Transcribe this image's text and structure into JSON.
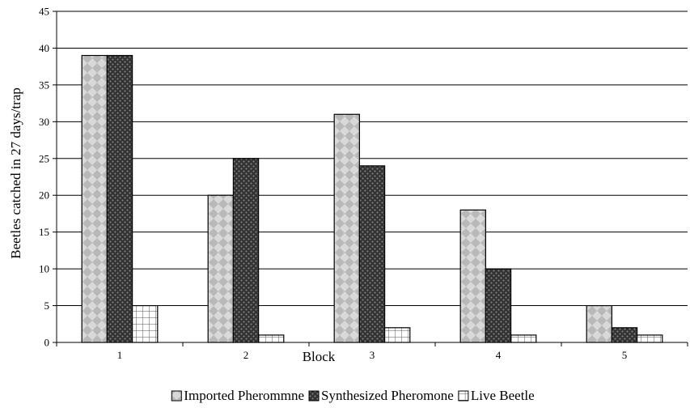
{
  "chart_data": {
    "type": "bar",
    "title": "",
    "xlabel": "Block",
    "ylabel": "Beetles catched in 27 days/trap",
    "categories": [
      "1",
      "2",
      "3",
      "4",
      "5"
    ],
    "ylim": [
      0,
      45
    ],
    "yticks": [
      0,
      5,
      10,
      15,
      20,
      25,
      30,
      35,
      40,
      45
    ],
    "grid": true,
    "legend_position": "bottom",
    "series": [
      {
        "name": "Imported Pherommne",
        "values": [
          39,
          20,
          31,
          18,
          5
        ],
        "pattern": "diamond-checker",
        "color": "#b9b9b9"
      },
      {
        "name": "Synthesized Pheromone",
        "values": [
          39,
          25,
          24,
          10,
          2
        ],
        "pattern": "dark-dots",
        "color": "#3a3a3a"
      },
      {
        "name": "Live Beetle",
        "values": [
          5,
          1,
          2,
          1,
          1
        ],
        "pattern": "grid",
        "color": "#ffffff"
      }
    ]
  }
}
